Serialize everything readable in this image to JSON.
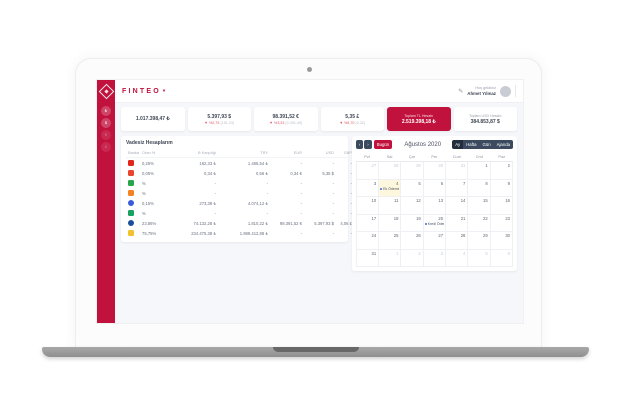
{
  "brand": {
    "name": "FINTEO",
    "caret": "▾"
  },
  "navbar": {
    "edit_icon": "✎",
    "user_greeting": "Hoş geldiniz",
    "user_name": "Ahmet Yılmaz"
  },
  "sidebar": {
    "items": [
      {
        "name": "tl-accounts",
        "glyph": "₺"
      },
      {
        "name": "usd-accounts",
        "glyph": "$"
      },
      {
        "name": "eur-accounts",
        "glyph": "€"
      },
      {
        "name": "gbp-accounts",
        "glyph": "£"
      }
    ]
  },
  "stats": {
    "cards": [
      {
        "value": "1.017.398,47 ₺"
      },
      {
        "value": "5.397,93 $",
        "change": "▼ %2,75",
        "note": "(151,23)"
      },
      {
        "value": "98.391,52 €",
        "change": "▼ %3,33",
        "note": "(3.391,40)"
      },
      {
        "value": "5,35 £",
        "change": "▼ %5,70",
        "note": "(0,32)"
      },
      {
        "label": "Toplam TL Hesabı",
        "value": "2.519.398,18 ₺"
      },
      {
        "label": "Toplam USD Hesabı",
        "value": "384.853,87 $"
      }
    ]
  },
  "accounts_panel": {
    "title": "Vadesiz Hesaplarım",
    "columns": [
      "Banka",
      "Oran %",
      "₺ Karşılığı",
      "TRY",
      "EUR",
      "USD",
      "GBP"
    ],
    "rows": [
      {
        "bank_color": "#e1251b",
        "shape": "square",
        "cells": [
          "0,25%",
          "162,33 ₺",
          "1.486,54 ₺",
          "-",
          "-",
          "-"
        ]
      },
      {
        "bank_color": "#e8442e",
        "shape": "square",
        "cells": [
          "0,05%",
          "0,34 ₺",
          "0,56 ₺",
          "0,34 €",
          "5,35 $",
          "-"
        ]
      },
      {
        "bank_color": "#27a44c",
        "shape": "square",
        "cells": [
          "%",
          "-",
          "-",
          "-",
          "-",
          "-"
        ]
      },
      {
        "bank_color": "#f58220",
        "shape": "square",
        "cells": [
          "%",
          "-",
          "-",
          "-",
          "-",
          "-"
        ]
      },
      {
        "bank_color": "#3a5bd9",
        "shape": "circle",
        "cells": [
          "0,15%",
          "273,38 ₺",
          "4.074,12 ₺",
          "-",
          "-",
          "-"
        ]
      },
      {
        "bank_color": "#17a05e",
        "shape": "square",
        "cells": [
          "%",
          "-",
          "-",
          "-",
          "-",
          "-"
        ]
      },
      {
        "bank_color": "#1b4f9c",
        "shape": "circle",
        "cells": [
          "23,86%",
          "74.132,28 ₺",
          "1.810,22 ₺",
          "98.391,52 €",
          "5.397,93 $",
          "4,06 £"
        ]
      },
      {
        "bank_color": "#f2c12e",
        "shape": "square",
        "cells": [
          "75,75%",
          "234.475,38 ₺",
          "1.989.412,88 ₺",
          "-",
          "-",
          "-"
        ]
      }
    ]
  },
  "calendar": {
    "title": "Ağustos 2020",
    "prev": "‹",
    "next": "›",
    "today_label": "Bugün",
    "views": [
      "Ay",
      "Hafta",
      "Gün",
      "Ajanda"
    ],
    "active_view": "Ay",
    "weekdays": [
      "Pzt",
      "Sal",
      "Çar",
      "Per",
      "Cum",
      "Cmt",
      "Paz"
    ],
    "weeks": [
      [
        {
          "d": 27,
          "muted": true
        },
        {
          "d": 28,
          "muted": true
        },
        {
          "d": 29,
          "muted": true
        },
        {
          "d": 30,
          "muted": true
        },
        {
          "d": 31,
          "muted": true
        },
        {
          "d": 1
        },
        {
          "d": 2
        }
      ],
      [
        {
          "d": 3
        },
        {
          "d": 4,
          "today": true,
          "event": "Ek Ödeme Günü"
        },
        {
          "d": 5
        },
        {
          "d": 6
        },
        {
          "d": 7
        },
        {
          "d": 8
        },
        {
          "d": 9
        }
      ],
      [
        {
          "d": 10
        },
        {
          "d": 11
        },
        {
          "d": 12
        },
        {
          "d": 13
        },
        {
          "d": 14
        },
        {
          "d": 15
        },
        {
          "d": 16
        }
      ],
      [
        {
          "d": 17
        },
        {
          "d": 18
        },
        {
          "d": 19
        },
        {
          "d": 20,
          "event": "Kredi Ödemesi"
        },
        {
          "d": 21
        },
        {
          "d": 22
        },
        {
          "d": 23
        }
      ],
      [
        {
          "d": 24
        },
        {
          "d": 25
        },
        {
          "d": 26
        },
        {
          "d": 27
        },
        {
          "d": 28
        },
        {
          "d": 29
        },
        {
          "d": 30
        }
      ],
      [
        {
          "d": 31
        },
        {
          "d": 1,
          "muted": true
        },
        {
          "d": 2,
          "muted": true
        },
        {
          "d": 3,
          "muted": true
        },
        {
          "d": 4,
          "muted": true
        },
        {
          "d": 5,
          "muted": true
        },
        {
          "d": 6,
          "muted": true
        }
      ]
    ],
    "event_dot_color": "#3f6ad8"
  },
  "colors": {
    "accent": "#c1123d",
    "navy": "#3b4a5f",
    "change_negative": "#e25563",
    "today_highlight": "#fdf7dd"
  }
}
